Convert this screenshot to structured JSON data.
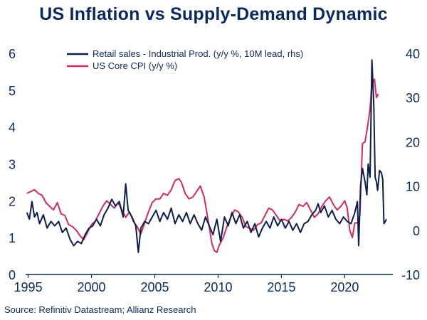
{
  "title": "US Inflation vs Supply-Demand Dynamic",
  "source": "Source: Refinitiv Datastream; Allianz Research",
  "colors": {
    "navy": "#0b1f4d",
    "crimson": "#d6295d",
    "text": "#0b2a5c"
  },
  "chart_data": {
    "type": "line",
    "title": "US Inflation vs Supply-Demand Dynamic",
    "x_ticks": [
      1995,
      2000,
      2005,
      2010,
      2015,
      2020
    ],
    "x_range": [
      1994.8,
      2023.8
    ],
    "y_left": {
      "range": [
        0,
        6
      ],
      "ticks": [
        0,
        1,
        2,
        3,
        4,
        5,
        6
      ]
    },
    "y_right": {
      "range": [
        -10,
        40
      ],
      "ticks": [
        -10,
        0,
        10,
        20,
        30,
        40
      ]
    },
    "legend_position": "top-center",
    "series": [
      {
        "name": "Retail sales - Industrial Prod. (y/y %, 10M lead, rhs)",
        "axis": "right",
        "color": "#0b1f4d",
        "points": [
          [
            1994.9,
            4.0
          ],
          [
            1995.1,
            2.5
          ],
          [
            1995.3,
            6.5
          ],
          [
            1995.5,
            3.0
          ],
          [
            1995.7,
            4.0
          ],
          [
            1995.9,
            1.5
          ],
          [
            1996.2,
            3.5
          ],
          [
            1996.5,
            0.5
          ],
          [
            1996.8,
            2.0
          ],
          [
            1997.1,
            1.0
          ],
          [
            1997.4,
            2.0
          ],
          [
            1997.7,
            -0.5
          ],
          [
            1998.0,
            0.5
          ],
          [
            1998.3,
            -2.0
          ],
          [
            1998.6,
            -3.5
          ],
          [
            1998.9,
            -2.5
          ],
          [
            1999.2,
            -3.0
          ],
          [
            1999.5,
            -1.0
          ],
          [
            1999.8,
            0.5
          ],
          [
            2000.1,
            1.0
          ],
          [
            2000.4,
            2.5
          ],
          [
            2000.7,
            1.0
          ],
          [
            2001.0,
            3.5
          ],
          [
            2001.3,
            5.0
          ],
          [
            2001.6,
            7.0
          ],
          [
            2001.9,
            5.5
          ],
          [
            2002.2,
            6.5
          ],
          [
            2002.5,
            3.0
          ],
          [
            2002.7,
            10.5
          ],
          [
            2002.9,
            4.5
          ],
          [
            2003.2,
            3.0
          ],
          [
            2003.5,
            1.0
          ],
          [
            2003.7,
            -5.0
          ],
          [
            2003.9,
            0.5
          ],
          [
            2004.2,
            2.0
          ],
          [
            2004.5,
            1.5
          ],
          [
            2004.8,
            3.0
          ],
          [
            2005.1,
            4.5
          ],
          [
            2005.4,
            2.0
          ],
          [
            2005.7,
            4.0
          ],
          [
            2006.0,
            2.5
          ],
          [
            2006.3,
            5.0
          ],
          [
            2006.6,
            1.5
          ],
          [
            2006.9,
            3.5
          ],
          [
            2007.2,
            2.0
          ],
          [
            2007.5,
            4.0
          ],
          [
            2007.8,
            1.5
          ],
          [
            2008.1,
            3.5
          ],
          [
            2008.4,
            1.5
          ],
          [
            2008.7,
            0.0
          ],
          [
            2009.0,
            3.0
          ],
          [
            2009.3,
            1.0
          ],
          [
            2009.6,
            -1.0
          ],
          [
            2009.9,
            2.5
          ],
          [
            2010.2,
            -2.5
          ],
          [
            2010.5,
            3.0
          ],
          [
            2010.8,
            1.0
          ],
          [
            2011.1,
            4.0
          ],
          [
            2011.4,
            1.5
          ],
          [
            2011.7,
            3.5
          ],
          [
            2012.0,
            0.5
          ],
          [
            2012.3,
            2.0
          ],
          [
            2012.6,
            -0.5
          ],
          [
            2012.9,
            1.5
          ],
          [
            2013.2,
            -1.5
          ],
          [
            2013.5,
            0.5
          ],
          [
            2013.8,
            2.0
          ],
          [
            2014.1,
            0.5
          ],
          [
            2014.4,
            3.0
          ],
          [
            2014.7,
            1.0
          ],
          [
            2015.0,
            2.5
          ],
          [
            2015.3,
            0.5
          ],
          [
            2015.6,
            2.0
          ],
          [
            2015.9,
            0.0
          ],
          [
            2016.2,
            1.5
          ],
          [
            2016.5,
            -0.5
          ],
          [
            2016.8,
            1.5
          ],
          [
            2017.1,
            2.0
          ],
          [
            2017.4,
            3.5
          ],
          [
            2017.7,
            4.5
          ],
          [
            2017.9,
            6.0
          ],
          [
            2018.1,
            4.0
          ],
          [
            2018.4,
            5.5
          ],
          [
            2018.7,
            3.0
          ],
          [
            2019.0,
            4.5
          ],
          [
            2019.3,
            2.5
          ],
          [
            2019.6,
            1.5
          ],
          [
            2019.9,
            3.0
          ],
          [
            2020.2,
            2.0
          ],
          [
            2020.5,
            1.5
          ],
          [
            2020.8,
            4.0
          ],
          [
            2021.0,
            6.5
          ],
          [
            2021.1,
            -3.5
          ],
          [
            2021.25,
            10.0
          ],
          [
            2021.4,
            14.0
          ],
          [
            2021.6,
            11.0
          ],
          [
            2021.75,
            8.0
          ],
          [
            2021.85,
            15.0
          ],
          [
            2022.0,
            12.0
          ],
          [
            2022.15,
            38.5
          ],
          [
            2022.3,
            28.0
          ],
          [
            2022.4,
            12.0
          ],
          [
            2022.5,
            11.0
          ],
          [
            2022.6,
            9.0
          ],
          [
            2022.75,
            13.5
          ],
          [
            2022.9,
            13.0
          ],
          [
            2023.0,
            11.5
          ],
          [
            2023.1,
            1.5
          ],
          [
            2023.3,
            2.5
          ]
        ]
      },
      {
        "name": "US Core CPI (y/y %)",
        "axis": "left",
        "color": "#d6295d",
        "points": [
          [
            1994.9,
            2.2
          ],
          [
            1995.2,
            2.25
          ],
          [
            1995.5,
            2.3
          ],
          [
            1995.8,
            2.2
          ],
          [
            1996.1,
            2.15
          ],
          [
            1996.4,
            1.95
          ],
          [
            1996.7,
            1.85
          ],
          [
            1997.0,
            1.75
          ],
          [
            1997.3,
            1.95
          ],
          [
            1997.6,
            1.65
          ],
          [
            1997.9,
            1.6
          ],
          [
            1998.2,
            1.35
          ],
          [
            1998.5,
            1.3
          ],
          [
            1998.8,
            1.2
          ],
          [
            1999.1,
            1.05
          ],
          [
            1999.4,
            0.95
          ],
          [
            1999.7,
            1.15
          ],
          [
            2000.0,
            1.35
          ],
          [
            2000.3,
            1.45
          ],
          [
            2000.6,
            1.65
          ],
          [
            2000.9,
            1.85
          ],
          [
            2001.2,
            2.0
          ],
          [
            2001.5,
            1.9
          ],
          [
            2001.8,
            1.8
          ],
          [
            2002.1,
            1.95
          ],
          [
            2002.4,
            1.75
          ],
          [
            2002.7,
            1.55
          ],
          [
            2003.0,
            1.7
          ],
          [
            2003.3,
            1.45
          ],
          [
            2003.6,
            1.3
          ],
          [
            2003.9,
            1.1
          ],
          [
            2004.2,
            1.4
          ],
          [
            2004.5,
            1.7
          ],
          [
            2004.8,
            1.95
          ],
          [
            2005.1,
            2.05
          ],
          [
            2005.4,
            2.05
          ],
          [
            2005.7,
            2.2
          ],
          [
            2006.0,
            2.15
          ],
          [
            2006.3,
            2.3
          ],
          [
            2006.6,
            2.55
          ],
          [
            2006.9,
            2.6
          ],
          [
            2007.1,
            2.5
          ],
          [
            2007.4,
            2.2
          ],
          [
            2007.7,
            2.05
          ],
          [
            2008.0,
            2.1
          ],
          [
            2008.3,
            2.25
          ],
          [
            2008.6,
            2.4
          ],
          [
            2008.9,
            2.1
          ],
          [
            2009.1,
            1.7
          ],
          [
            2009.3,
            1.3
          ],
          [
            2009.5,
            0.85
          ],
          [
            2009.7,
            0.65
          ],
          [
            2009.9,
            0.6
          ],
          [
            2010.1,
            0.8
          ],
          [
            2010.4,
            1.0
          ],
          [
            2010.7,
            1.3
          ],
          [
            2011.0,
            1.55
          ],
          [
            2011.3,
            1.75
          ],
          [
            2011.6,
            1.7
          ],
          [
            2011.9,
            1.55
          ],
          [
            2012.2,
            1.3
          ],
          [
            2012.5,
            1.25
          ],
          [
            2012.8,
            1.2
          ],
          [
            2013.1,
            1.35
          ],
          [
            2013.4,
            1.4
          ],
          [
            2013.7,
            1.6
          ],
          [
            2014.0,
            1.8
          ],
          [
            2014.3,
            1.75
          ],
          [
            2014.6,
            1.6
          ],
          [
            2014.9,
            1.45
          ],
          [
            2015.2,
            1.5
          ],
          [
            2015.5,
            1.45
          ],
          [
            2015.8,
            1.55
          ],
          [
            2016.1,
            1.7
          ],
          [
            2016.4,
            1.9
          ],
          [
            2016.7,
            1.85
          ],
          [
            2017.0,
            1.95
          ],
          [
            2017.3,
            1.75
          ],
          [
            2017.6,
            1.55
          ],
          [
            2017.9,
            1.65
          ],
          [
            2018.2,
            1.85
          ],
          [
            2018.5,
            2.0
          ],
          [
            2018.8,
            2.1
          ],
          [
            2019.1,
            1.9
          ],
          [
            2019.4,
            1.75
          ],
          [
            2019.7,
            1.85
          ],
          [
            2020.0,
            2.0
          ],
          [
            2020.2,
            1.8
          ],
          [
            2020.4,
            1.2
          ],
          [
            2020.6,
            1.0
          ],
          [
            2020.8,
            1.4
          ],
          [
            2021.0,
            1.4
          ],
          [
            2021.2,
            1.6
          ],
          [
            2021.4,
            3.55
          ],
          [
            2021.6,
            3.6
          ],
          [
            2021.8,
            4.0
          ],
          [
            2022.0,
            4.5
          ],
          [
            2022.1,
            5.0
          ],
          [
            2022.2,
            5.2
          ],
          [
            2022.35,
            5.3
          ],
          [
            2022.5,
            4.8
          ],
          [
            2022.65,
            4.9
          ]
        ]
      }
    ]
  }
}
